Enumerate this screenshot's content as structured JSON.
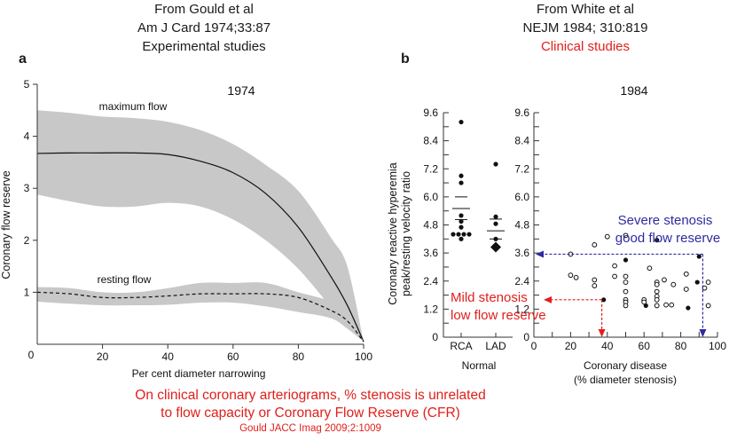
{
  "headers": {
    "left": [
      "From Gould et al",
      "Am J Card 1974;33:87",
      "Experimental studies"
    ],
    "right": [
      "From White et al",
      "NEJM 1984; 310:819",
      "Clinical studies"
    ]
  },
  "panel_labels": {
    "a": "a",
    "b": "b"
  },
  "footer": {
    "line1": "On clinical coronary arteriograms, % stenosis is unrelated",
    "line2": "to flow capacity or Coronary Flow Reserve (CFR)",
    "citation": "Gould JACC Imag 2009;2:1009"
  },
  "colors": {
    "band": "#c8c8c8",
    "axis": "#333333",
    "red_annotation": "#e0201c",
    "blue_annotation": "#2e2aa0"
  },
  "chart_data": [
    {
      "type": "area",
      "panel": "a",
      "title": "1974",
      "xlabel": "Per cent diameter narrowing",
      "ylabel": "Coronary flow reserve",
      "xlim": [
        0,
        100
      ],
      "ylim": [
        0,
        5
      ],
      "xticks": [
        0,
        20,
        40,
        60,
        80,
        100
      ],
      "yticks": [
        1,
        2,
        3,
        4,
        5
      ],
      "grid": false,
      "x": [
        0,
        10,
        20,
        30,
        40,
        50,
        60,
        70,
        80,
        90,
        95,
        100
      ],
      "series": [
        {
          "name": "maximum flow",
          "label": "maximum flow",
          "style": "solid",
          "values": [
            3.67,
            3.68,
            3.68,
            3.68,
            3.65,
            3.52,
            3.3,
            2.9,
            2.25,
            1.3,
            0.75,
            0.05
          ],
          "upper": [
            4.5,
            4.45,
            4.38,
            4.35,
            4.28,
            4.12,
            3.85,
            3.45,
            2.95,
            2.05,
            1.5,
            0.05
          ],
          "lower": [
            2.88,
            2.75,
            2.65,
            2.65,
            2.72,
            2.65,
            2.4,
            2.0,
            1.45,
            0.72,
            0.45,
            0.05
          ]
        },
        {
          "name": "resting flow",
          "label": "resting flow",
          "style": "dashed",
          "values": [
            1.0,
            0.97,
            0.9,
            0.9,
            0.93,
            0.97,
            0.97,
            0.97,
            0.9,
            0.65,
            0.45,
            0.05
          ],
          "upper": [
            1.1,
            1.08,
            1.0,
            1.0,
            1.08,
            1.18,
            1.18,
            1.18,
            1.0,
            0.82,
            0.55,
            0.05
          ],
          "lower": [
            0.82,
            0.78,
            0.75,
            0.75,
            0.76,
            0.8,
            0.8,
            0.73,
            0.62,
            0.5,
            0.3,
            0.05
          ]
        }
      ]
    },
    {
      "type": "scatter",
      "panel": "b-normal",
      "title": "1984",
      "ylabel": "Coronary reactive hyperemia peak/resting velocity ratio",
      "xlabel": "Normal",
      "categories": [
        "RCA",
        "LAD"
      ],
      "ylim": [
        0,
        9.6
      ],
      "yticks": [
        0,
        1.2,
        2.4,
        3.6,
        4.8,
        6.0,
        7.2,
        8.4,
        9.6
      ],
      "points": [
        {
          "cat": "RCA",
          "y": 9.2,
          "dx": 0
        },
        {
          "cat": "RCA",
          "y": 6.9,
          "dx": 0
        },
        {
          "cat": "RCA",
          "y": 6.6,
          "dx": 0
        },
        {
          "cat": "RCA",
          "y": 5.2,
          "dx": 0
        },
        {
          "cat": "RCA",
          "y": 4.95,
          "dx": 0
        },
        {
          "cat": "RCA",
          "y": 4.7,
          "dx": 0
        },
        {
          "cat": "RCA",
          "y": 4.4,
          "dx": -1
        },
        {
          "cat": "RCA",
          "y": 4.4,
          "dx": 0
        },
        {
          "cat": "RCA",
          "y": 4.4,
          "dx": 1
        },
        {
          "cat": "RCA",
          "y": 4.4,
          "dx": 2
        },
        {
          "cat": "RCA",
          "y": 4.2,
          "dx": 0
        },
        {
          "cat": "LAD",
          "y": 7.4,
          "dx": 0
        },
        {
          "cat": "LAD",
          "y": 5.15,
          "dx": 0
        },
        {
          "cat": "LAD",
          "y": 4.85,
          "dx": 0
        },
        {
          "cat": "LAD",
          "y": 4.2,
          "dx": 0
        }
      ],
      "diamond": {
        "cat": "LAD",
        "y": 3.85
      },
      "mean_lines": [
        {
          "cat": "RCA",
          "y": 6.0,
          "half": "short"
        },
        {
          "cat": "RCA",
          "y": 5.5,
          "half": "long"
        },
        {
          "cat": "RCA",
          "y": 5.03,
          "half": "short"
        },
        {
          "cat": "LAD",
          "y": 5.05,
          "half": "short"
        },
        {
          "cat": "LAD",
          "y": 4.55,
          "half": "long"
        },
        {
          "cat": "LAD",
          "y": 4.2,
          "half": "short"
        }
      ]
    },
    {
      "type": "scatter",
      "panel": "b-disease",
      "xlabel": "Coronary disease",
      "xlabel2": "(% diameter stenosis)",
      "xlim": [
        0,
        100
      ],
      "ylim": [
        0,
        9.6
      ],
      "xticks": [
        0,
        20,
        40,
        60,
        80,
        100
      ],
      "yticks": [
        0,
        1.2,
        2.4,
        3.6,
        4.8,
        6.0,
        7.2,
        8.4,
        9.6
      ],
      "open_points": [
        [
          20,
          3.55
        ],
        [
          20,
          2.65
        ],
        [
          23,
          2.55
        ],
        [
          33,
          3.95
        ],
        [
          33,
          2.45
        ],
        [
          33,
          2.2
        ],
        [
          40,
          4.3
        ],
        [
          44,
          3.05
        ],
        [
          44,
          2.6
        ],
        [
          50,
          4.35
        ],
        [
          50,
          2.6
        ],
        [
          50,
          2.35
        ],
        [
          50,
          1.95
        ],
        [
          50,
          1.6
        ],
        [
          50,
          1.5
        ],
        [
          50,
          1.35
        ],
        [
          63,
          2.95
        ],
        [
          60,
          1.6
        ],
        [
          60,
          1.5
        ],
        [
          67,
          2.35
        ],
        [
          67,
          2.25
        ],
        [
          67,
          1.95
        ],
        [
          67,
          1.75
        ],
        [
          67,
          1.6
        ],
        [
          67,
          1.35
        ],
        [
          71,
          2.45
        ],
        [
          72,
          1.38
        ],
        [
          76,
          2.25
        ],
        [
          75,
          1.38
        ],
        [
          83,
          2.7
        ],
        [
          83,
          2.05
        ],
        [
          93,
          2.1
        ],
        [
          95,
          2.35
        ],
        [
          95,
          1.35
        ]
      ],
      "filled_points": [
        [
          50,
          3.3
        ],
        [
          67,
          4.15
        ],
        [
          90,
          3.45
        ],
        [
          38,
          1.6
        ],
        [
          61,
          1.35
        ],
        [
          84,
          1.25
        ],
        [
          89,
          2.35
        ]
      ],
      "annotations": [
        {
          "text": [
            "Severe stenosis",
            "good flow reserve"
          ],
          "color": "blue",
          "from_point": [
            92,
            3.55
          ]
        },
        {
          "text": [
            "Mild stenosis",
            "low flow reserve"
          ],
          "color": "red",
          "from_point": [
            37,
            1.6
          ]
        }
      ]
    }
  ]
}
